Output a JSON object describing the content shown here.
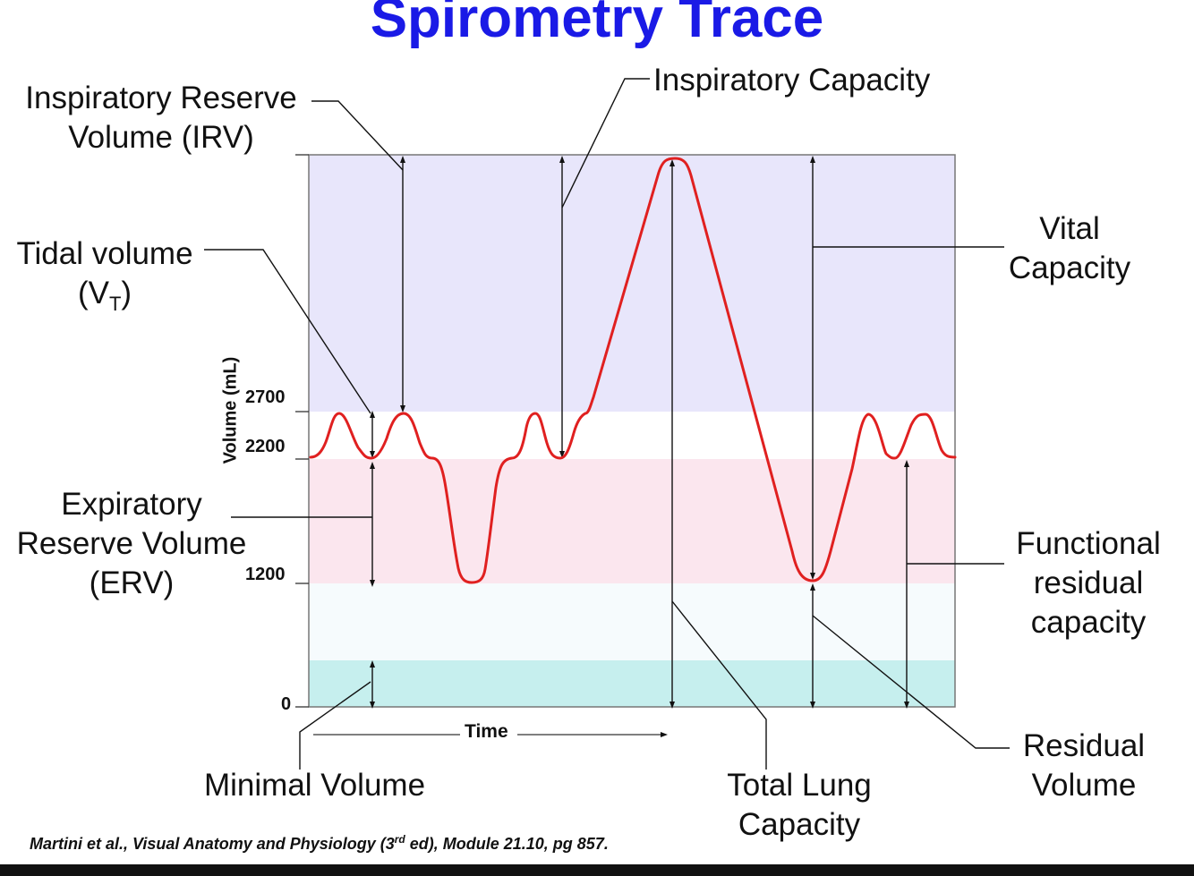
{
  "title": "Spirometry Trace",
  "labels": {
    "irv": [
      "Inspiratory Reserve",
      "Volume (IRV)"
    ],
    "tidal": [
      "Tidal volume",
      "(V",
      "T",
      ")"
    ],
    "erv": [
      "Expiratory",
      "Reserve Volume",
      "(ERV)"
    ],
    "inspiratory_capacity": "Inspiratory Capacity",
    "vital_capacity": [
      "Vital",
      "Capacity"
    ],
    "frc": [
      "Functional",
      "residual",
      "capacity"
    ],
    "residual_volume": [
      "Residual",
      "Volume"
    ],
    "minimal_volume": "Minimal Volume",
    "total_lung_capacity": [
      "Total Lung",
      "Capacity"
    ]
  },
  "axis": {
    "y_label": "Volume (mL)",
    "x_label": "Time",
    "ticks": [
      "2700",
      "2200",
      "1200",
      "0"
    ]
  },
  "citation": {
    "before_sup": "Martini et al., Visual Anatomy and Physiology (3",
    "sup": "rd",
    "after_sup": " ed), Module 21.10, pg 857."
  },
  "colors": {
    "title": "#1a1ae6",
    "trace": "#e02020",
    "irv_band": "#e8e6fb",
    "erv_band": "#fbe6ee",
    "residual_band": "#d2f4f1",
    "minimal_band": "#c6efee"
  }
}
